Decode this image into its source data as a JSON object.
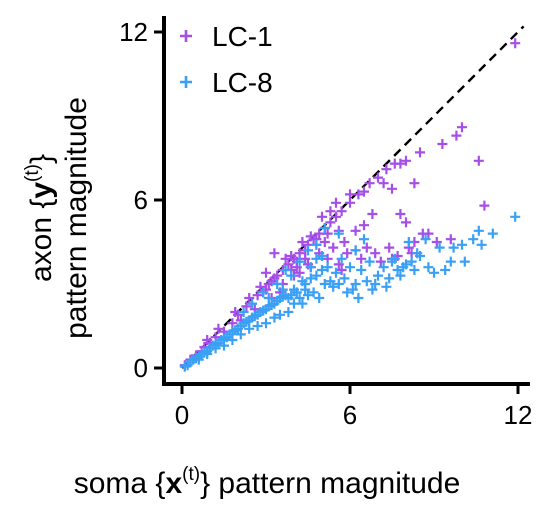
{
  "chart_data": {
    "type": "scatter",
    "xlabel": {
      "prefix": "soma {",
      "bold": "x",
      "sup": "(t)",
      "suffix": "} pattern magnitude"
    },
    "ylabel": {
      "line1": {
        "prefix": "axon {",
        "bold": "y",
        "sup": "(t)",
        "suffix": "}"
      },
      "line2": "pattern magnitude"
    },
    "xlim": [
      0,
      12.2
    ],
    "ylim": [
      0,
      12.2
    ],
    "xticks": [
      0,
      6,
      12
    ],
    "yticks": [
      0,
      6,
      12
    ],
    "reference_line": "y = x (dashed)",
    "legend_position": "top-left",
    "series": [
      {
        "name": "LC-1",
        "color": "#a64ee8",
        "marker": "plus",
        "points": [
          [
            0.1,
            0.1
          ],
          [
            0.3,
            0.3
          ],
          [
            0.5,
            0.45
          ],
          [
            0.8,
            0.75
          ],
          [
            1.0,
            0.9
          ],
          [
            1.2,
            1.1
          ],
          [
            1.5,
            1.3
          ],
          [
            1.8,
            1.6
          ],
          [
            2.0,
            1.9
          ],
          [
            2.3,
            2.2
          ],
          [
            2.5,
            2.3
          ],
          [
            2.7,
            2.6
          ],
          [
            3.0,
            2.8
          ],
          [
            3.2,
            3.1
          ],
          [
            3.4,
            3.3
          ],
          [
            3.6,
            3.5
          ],
          [
            3.8,
            3.7
          ],
          [
            4.0,
            3.9
          ],
          [
            4.2,
            4.1
          ],
          [
            4.5,
            4.4
          ],
          [
            4.7,
            4.6
          ],
          [
            4.9,
            4.8
          ],
          [
            5.1,
            5.0
          ],
          [
            5.3,
            5.2
          ],
          [
            5.5,
            5.4
          ],
          [
            5.7,
            5.6
          ],
          [
            6.0,
            5.9
          ],
          [
            6.3,
            6.2
          ],
          [
            6.5,
            6.3
          ],
          [
            6.7,
            6.6
          ],
          [
            7.0,
            6.8
          ],
          [
            7.3,
            7.1
          ],
          [
            7.6,
            7.3
          ],
          [
            7.8,
            7.3
          ],
          [
            8.0,
            7.4
          ],
          [
            8.3,
            6.6
          ],
          [
            8.5,
            7.7
          ],
          [
            7.5,
            6.4
          ],
          [
            9.3,
            8.0
          ],
          [
            9.8,
            8.3
          ],
          [
            10.0,
            8.6
          ],
          [
            10.6,
            7.4
          ],
          [
            10.8,
            5.8
          ],
          [
            11.9,
            11.6
          ],
          [
            3.3,
            4.1
          ],
          [
            3.9,
            3.5
          ],
          [
            4.1,
            3.8
          ],
          [
            4.4,
            3.9
          ],
          [
            4.6,
            4.7
          ],
          [
            4.8,
            4.4
          ],
          [
            5.2,
            4.8
          ],
          [
            5.6,
            4.9
          ],
          [
            6.5,
            5.1
          ],
          [
            5.8,
            4.5
          ],
          [
            6.2,
            4.9
          ],
          [
            4.8,
            4.6
          ],
          [
            5.4,
            4.3
          ],
          [
            6.2,
            4.2
          ],
          [
            5.9,
            4.1
          ],
          [
            6.6,
            4.3
          ],
          [
            5.2,
            3.9
          ],
          [
            5.6,
            3.7
          ],
          [
            6.9,
            4.1
          ],
          [
            7.4,
            4.3
          ],
          [
            7.8,
            5.5
          ],
          [
            8.0,
            5.2
          ],
          [
            8.8,
            4.8
          ],
          [
            9.1,
            4.5
          ],
          [
            8.3,
            4.5
          ],
          [
            8.6,
            4.8
          ],
          [
            7.1,
            3.8
          ],
          [
            7.5,
            3.9
          ],
          [
            8.1,
            4.3
          ],
          [
            4.5,
            3.7
          ],
          [
            3.1,
            3.0
          ],
          [
            2.9,
            2.7
          ],
          [
            3.3,
            3.2
          ],
          [
            3.5,
            2.7
          ],
          [
            4.1,
            3.6
          ],
          [
            4.0,
            3.3
          ],
          [
            6.8,
            5.5
          ],
          [
            5.5,
            5.9
          ],
          [
            6.0,
            6.2
          ],
          [
            7.2,
            6.6
          ],
          [
            4.3,
            4.5
          ],
          [
            3.7,
            3.9
          ],
          [
            3.0,
            3.4
          ],
          [
            2.4,
            2.5
          ],
          [
            1.9,
            2.0
          ],
          [
            1.3,
            1.4
          ],
          [
            0.9,
            1.0
          ],
          [
            0.7,
            0.6
          ],
          [
            5.0,
            5.4
          ],
          [
            5.3,
            5.6
          ],
          [
            4.9,
            4.1
          ],
          [
            4.6,
            3.6
          ],
          [
            3.6,
            3.0
          ],
          [
            2.8,
            2.9
          ],
          [
            3.9,
            4.0
          ],
          [
            4.4,
            4.2
          ],
          [
            9.6,
            4.6
          ],
          [
            8.2,
            4.1
          ],
          [
            7.7,
            4.0
          ],
          [
            6.4,
            3.9
          ],
          [
            5.7,
            3.5
          ],
          [
            5.1,
            4.5
          ],
          [
            4.2,
            3.4
          ],
          [
            3.2,
            2.5
          ],
          [
            2.6,
            2.1
          ],
          [
            2.1,
            1.7
          ]
        ]
      },
      {
        "name": "LC-8",
        "color": "#3aa0f5",
        "marker": "plus",
        "points": [
          [
            0.1,
            0.05
          ],
          [
            0.2,
            0.1
          ],
          [
            0.3,
            0.2
          ],
          [
            0.4,
            0.3
          ],
          [
            0.5,
            0.35
          ],
          [
            0.6,
            0.4
          ],
          [
            0.7,
            0.5
          ],
          [
            0.8,
            0.55
          ],
          [
            0.9,
            0.6
          ],
          [
            1.0,
            0.7
          ],
          [
            1.1,
            0.8
          ],
          [
            1.2,
            0.85
          ],
          [
            1.3,
            0.9
          ],
          [
            1.4,
            1.0
          ],
          [
            1.5,
            1.05
          ],
          [
            1.6,
            1.1
          ],
          [
            1.7,
            1.2
          ],
          [
            1.8,
            1.3
          ],
          [
            1.9,
            1.35
          ],
          [
            2.0,
            1.4
          ],
          [
            2.1,
            1.5
          ],
          [
            2.2,
            1.6
          ],
          [
            2.3,
            1.65
          ],
          [
            2.4,
            1.7
          ],
          [
            2.5,
            1.8
          ],
          [
            2.6,
            1.85
          ],
          [
            2.7,
            1.9
          ],
          [
            2.8,
            2.0
          ],
          [
            2.9,
            2.05
          ],
          [
            3.0,
            2.1
          ],
          [
            3.1,
            2.2
          ],
          [
            3.2,
            2.25
          ],
          [
            3.3,
            2.3
          ],
          [
            3.4,
            2.4
          ],
          [
            3.5,
            2.5
          ],
          [
            3.6,
            2.55
          ],
          [
            3.7,
            2.6
          ],
          [
            3.8,
            2.5
          ],
          [
            3.9,
            2.6
          ],
          [
            4.0,
            2.8
          ],
          [
            4.1,
            2.7
          ],
          [
            4.2,
            2.5
          ],
          [
            4.3,
            3.1
          ],
          [
            4.4,
            2.8
          ],
          [
            4.5,
            2.6
          ],
          [
            4.6,
            3.2
          ],
          [
            4.7,
            2.7
          ],
          [
            4.8,
            3.3
          ],
          [
            4.9,
            2.5
          ],
          [
            5.0,
            3.5
          ],
          [
            5.1,
            3.0
          ],
          [
            5.3,
            3.1
          ],
          [
            5.5,
            3.4
          ],
          [
            5.6,
            3.0
          ],
          [
            5.8,
            3.2
          ],
          [
            6.0,
            3.6
          ],
          [
            6.1,
            2.8
          ],
          [
            6.2,
            3.0
          ],
          [
            6.4,
            3.5
          ],
          [
            6.6,
            3.1
          ],
          [
            6.8,
            2.8
          ],
          [
            7.0,
            3.3
          ],
          [
            7.2,
            3.6
          ],
          [
            7.4,
            3.2
          ],
          [
            7.5,
            3.8
          ],
          [
            7.7,
            3.5
          ],
          [
            7.8,
            3.3
          ],
          [
            8.0,
            3.7
          ],
          [
            8.1,
            4.5
          ],
          [
            8.3,
            3.5
          ],
          [
            8.5,
            4.0
          ],
          [
            8.8,
            3.6
          ],
          [
            9.0,
            3.4
          ],
          [
            9.4,
            3.5
          ],
          [
            9.7,
            4.3
          ],
          [
            10.0,
            4.4
          ],
          [
            10.4,
            4.6
          ],
          [
            10.6,
            4.9
          ],
          [
            10.7,
            4.4
          ],
          [
            10.1,
            3.8
          ],
          [
            9.2,
            4.3
          ],
          [
            8.7,
            4.6
          ],
          [
            8.4,
            4.1
          ],
          [
            7.9,
            3.6
          ],
          [
            7.3,
            2.9
          ],
          [
            6.9,
            3.0
          ],
          [
            6.7,
            3.8
          ],
          [
            6.3,
            2.5
          ],
          [
            5.9,
            2.7
          ],
          [
            5.7,
            3.9
          ],
          [
            5.4,
            2.9
          ],
          [
            5.2,
            3.6
          ],
          [
            4.8,
            3.9
          ],
          [
            4.5,
            4.2
          ],
          [
            4.3,
            2.3
          ],
          [
            4.0,
            2.3
          ],
          [
            3.8,
            2.0
          ],
          [
            3.5,
            1.9
          ],
          [
            3.3,
            1.8
          ],
          [
            3.0,
            1.6
          ],
          [
            2.7,
            1.5
          ],
          [
            2.4,
            1.4
          ],
          [
            2.1,
            1.2
          ],
          [
            1.8,
            1.0
          ],
          [
            1.5,
            0.8
          ],
          [
            1.2,
            0.7
          ],
          [
            0.9,
            0.5
          ],
          [
            0.6,
            0.3
          ],
          [
            11.1,
            4.8
          ],
          [
            11.9,
            5.4
          ],
          [
            5.6,
            4.8
          ],
          [
            5.1,
            5.0
          ],
          [
            4.8,
            4.4
          ],
          [
            3.7,
            3.5
          ],
          [
            4.2,
            3.8
          ],
          [
            3.4,
            3.0
          ],
          [
            3.9,
            3.3
          ],
          [
            2.9,
            2.7
          ],
          [
            2.5,
            2.3
          ],
          [
            2.2,
            2.0
          ],
          [
            6.2,
            4.2
          ],
          [
            6.5,
            4.6
          ],
          [
            5.0,
            4.0
          ],
          [
            4.6,
            3.6
          ],
          [
            7.6,
            3.9
          ],
          [
            8.2,
            3.8
          ],
          [
            9.6,
            3.8
          ],
          [
            4.4,
            3.0
          ],
          [
            3.6,
            2.8
          ],
          [
            3.1,
            2.5
          ]
        ]
      }
    ]
  }
}
